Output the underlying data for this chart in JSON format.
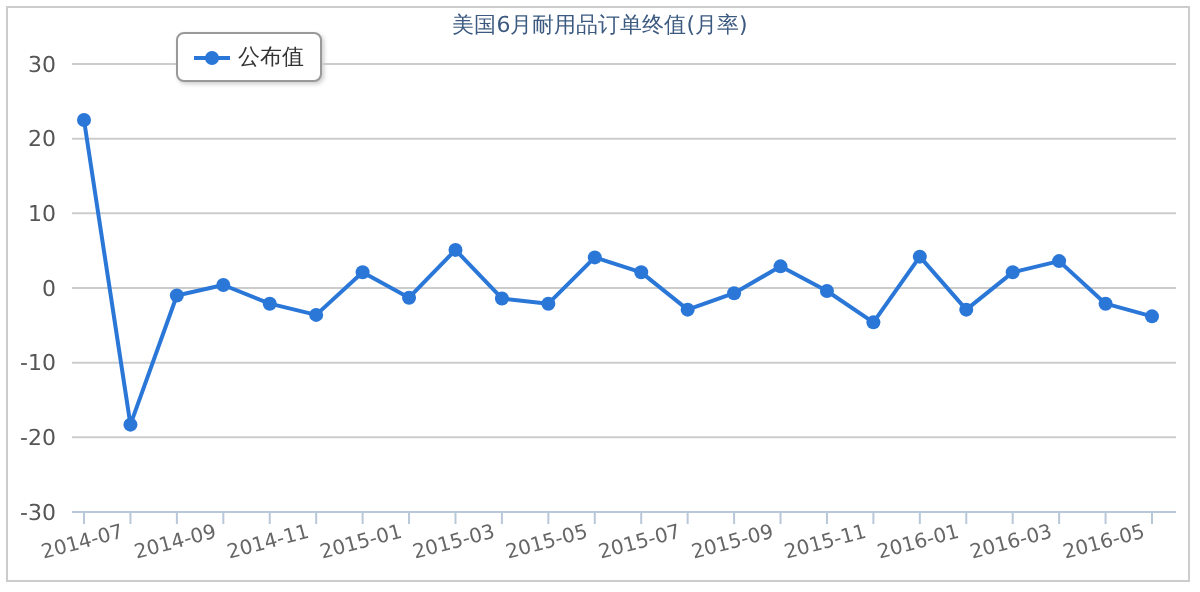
{
  "chart_data": {
    "type": "line",
    "title": "美国6月耐用品订单终值(月率)",
    "categories": [
      "2014-07",
      null,
      "2014-09",
      null,
      "2014-11",
      null,
      "2015-01",
      null,
      "2015-03",
      null,
      "2015-05",
      null,
      "2015-07",
      null,
      "2015-09",
      null,
      "2015-11",
      null,
      "2016-01",
      null,
      "2016-03",
      null,
      "2016-05",
      null
    ],
    "series": [
      {
        "name": "公布值",
        "color": "#2a77d8",
        "values": [
          22.5,
          -18.3,
          -1.0,
          0.4,
          -2.1,
          -3.6,
          2.1,
          -1.3,
          5.1,
          -1.4,
          -2.1,
          4.1,
          2.1,
          -2.9,
          -0.7,
          2.9,
          -0.4,
          -4.6,
          4.2,
          -2.9,
          2.1,
          3.6,
          -2.1,
          -3.8
        ]
      }
    ],
    "ylim": [
      -30,
      30
    ],
    "yticks": [
      -30,
      -20,
      -10,
      0,
      10,
      20,
      30
    ],
    "grid": "y",
    "legend": "top left",
    "marker": "circle",
    "line_style": "solid"
  }
}
